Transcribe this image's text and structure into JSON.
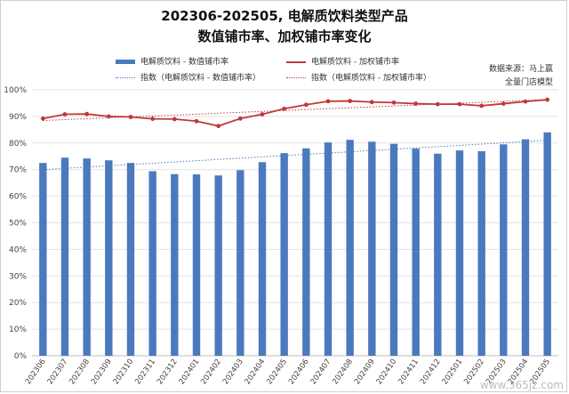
{
  "chart_data": {
    "type": "bar",
    "title_line1": "202306-202505, 电解质饮料类型产品",
    "title_line2": "数值铺市率、加权铺市率变化",
    "source_line1": "数据来源：马上赢",
    "source_line2": "全量门店模型",
    "categories": [
      "202306",
      "202307",
      "202308",
      "202309",
      "202310",
      "202311",
      "202312",
      "202401",
      "202402",
      "202403",
      "202404",
      "202405",
      "202406",
      "202407",
      "202408",
      "202409",
      "202410",
      "202411",
      "202412",
      "202501",
      "202502",
      "202503",
      "202504",
      "202505"
    ],
    "series": [
      {
        "name": "电解质饮料 - 数值铺市率",
        "type": "bar",
        "color": "#4a7abd",
        "values": [
          72.5,
          74.5,
          74.2,
          73.5,
          72.5,
          69.4,
          68.3,
          68.2,
          67.8,
          69.8,
          72.8,
          76.2,
          78.0,
          80.2,
          81.2,
          80.5,
          79.7,
          77.9,
          76.0,
          77.2,
          76.9,
          79.5,
          81.4,
          84.0
        ]
      },
      {
        "name": "电解质饮料 - 加权铺市率",
        "type": "line",
        "color": "#c0393b",
        "values": [
          89.2,
          90.8,
          90.9,
          90.0,
          89.8,
          89.1,
          89.0,
          88.2,
          86.4,
          89.2,
          90.8,
          92.9,
          94.4,
          95.7,
          95.8,
          95.4,
          95.2,
          94.8,
          94.6,
          94.6,
          94.0,
          94.8,
          95.6,
          96.3
        ]
      }
    ],
    "trendlines": [
      {
        "name": "指数（电解质饮料 - 数值铺市率）",
        "color": "#4a7abd"
      },
      {
        "name": "指数（电解质饮料 - 加权铺市率）",
        "color": "#c0393b"
      }
    ],
    "ylim": [
      0,
      100
    ],
    "y_ticks": [
      "0%",
      "10%",
      "20%",
      "30%",
      "40%",
      "50%",
      "60%",
      "70%",
      "80%",
      "90%",
      "100%"
    ],
    "grid": true
  },
  "watermark": "www.365jz.com"
}
